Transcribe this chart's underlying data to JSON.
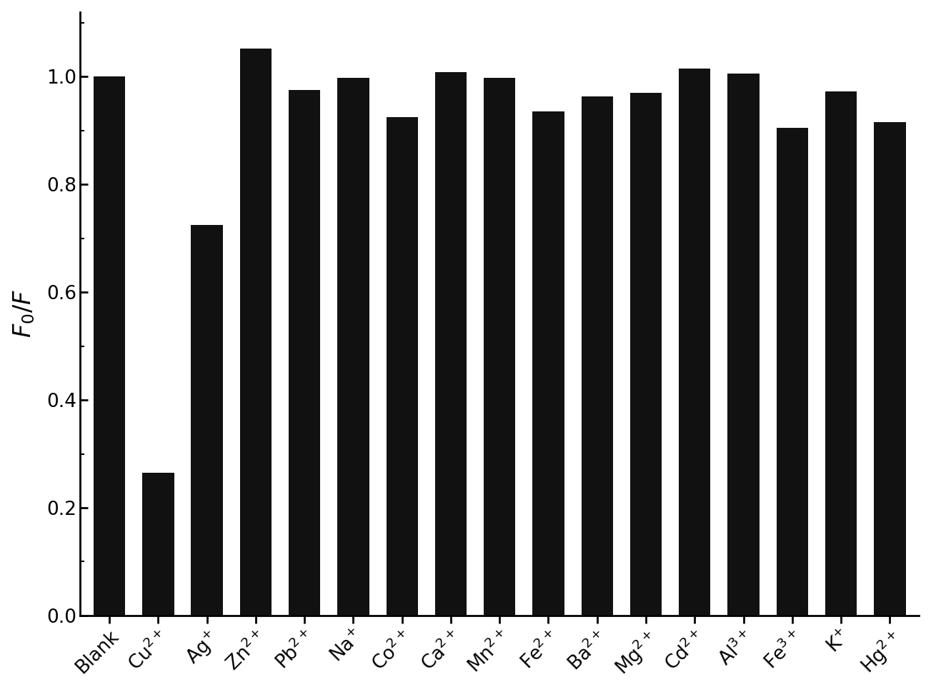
{
  "categories": [
    "Blank",
    "Cu$^{2+}$",
    "Ag$^{+}$",
    "Zn$^{2+}$",
    "Pb$^{2+}$",
    "Na$^{+}$",
    "Co$^{2+}$",
    "Ca$^{2+}$",
    "Mn$^{2+}$",
    "Fe$^{2+}$",
    "Ba$^{2+}$",
    "Mg$^{2+}$",
    "Cd$^{2+}$",
    "Al$^{3+}$",
    "Fe$^{3+}$",
    "K$^{+}$",
    "Hg$^{2+}$"
  ],
  "values": [
    1.0,
    0.265,
    0.725,
    1.052,
    0.975,
    0.998,
    0.925,
    1.008,
    0.998,
    0.935,
    0.963,
    0.97,
    1.015,
    1.005,
    0.905,
    0.972,
    0.915
  ],
  "bar_color": "#111111",
  "ylabel": "$F_{0}/F$",
  "ylim": [
    0.0,
    1.12
  ],
  "yticks": [
    0.0,
    0.2,
    0.4,
    0.6,
    0.8,
    1.0
  ],
  "background_color": "#ffffff",
  "bar_width": 0.65,
  "ylabel_fontsize": 24,
  "tick_fontsize": 19,
  "xtick_rotation": 45
}
